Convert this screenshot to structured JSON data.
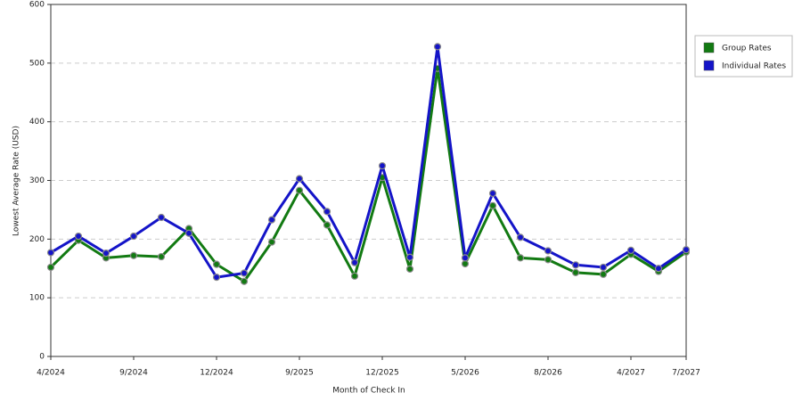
{
  "chart_data": {
    "type": "line",
    "x_label": "Month of Check In",
    "y_label": "Lowest Average Rate (USD)",
    "categories": [
      "4/2024",
      null,
      null,
      "9/2024",
      null,
      null,
      "12/2024",
      null,
      null,
      "9/2025",
      null,
      null,
      "12/2025",
      null,
      null,
      "5/2026",
      null,
      null,
      "8/2026",
      null,
      null,
      "4/2027",
      null,
      "7/2027"
    ],
    "series": [
      {
        "name": "Group Rates",
        "color": "#127a12",
        "values": [
          152,
          198,
          168,
          172,
          170,
          218,
          157,
          128,
          195,
          283,
          224,
          137,
          305,
          149,
          491,
          158,
          257,
          168,
          165,
          143,
          140,
          174,
          145,
          178
        ]
      },
      {
        "name": "Individual Rates",
        "color": "#1414c8",
        "values": [
          177,
          205,
          176,
          205,
          237,
          210,
          135,
          142,
          233,
          303,
          247,
          160,
          325,
          169,
          528,
          168,
          278,
          203,
          180,
          156,
          152,
          181,
          150,
          182
        ]
      }
    ],
    "ylim": [
      0,
      600
    ],
    "yticks": [
      0,
      100,
      200,
      300,
      400,
      500,
      600
    ],
    "grid": true,
    "legend": "right"
  }
}
